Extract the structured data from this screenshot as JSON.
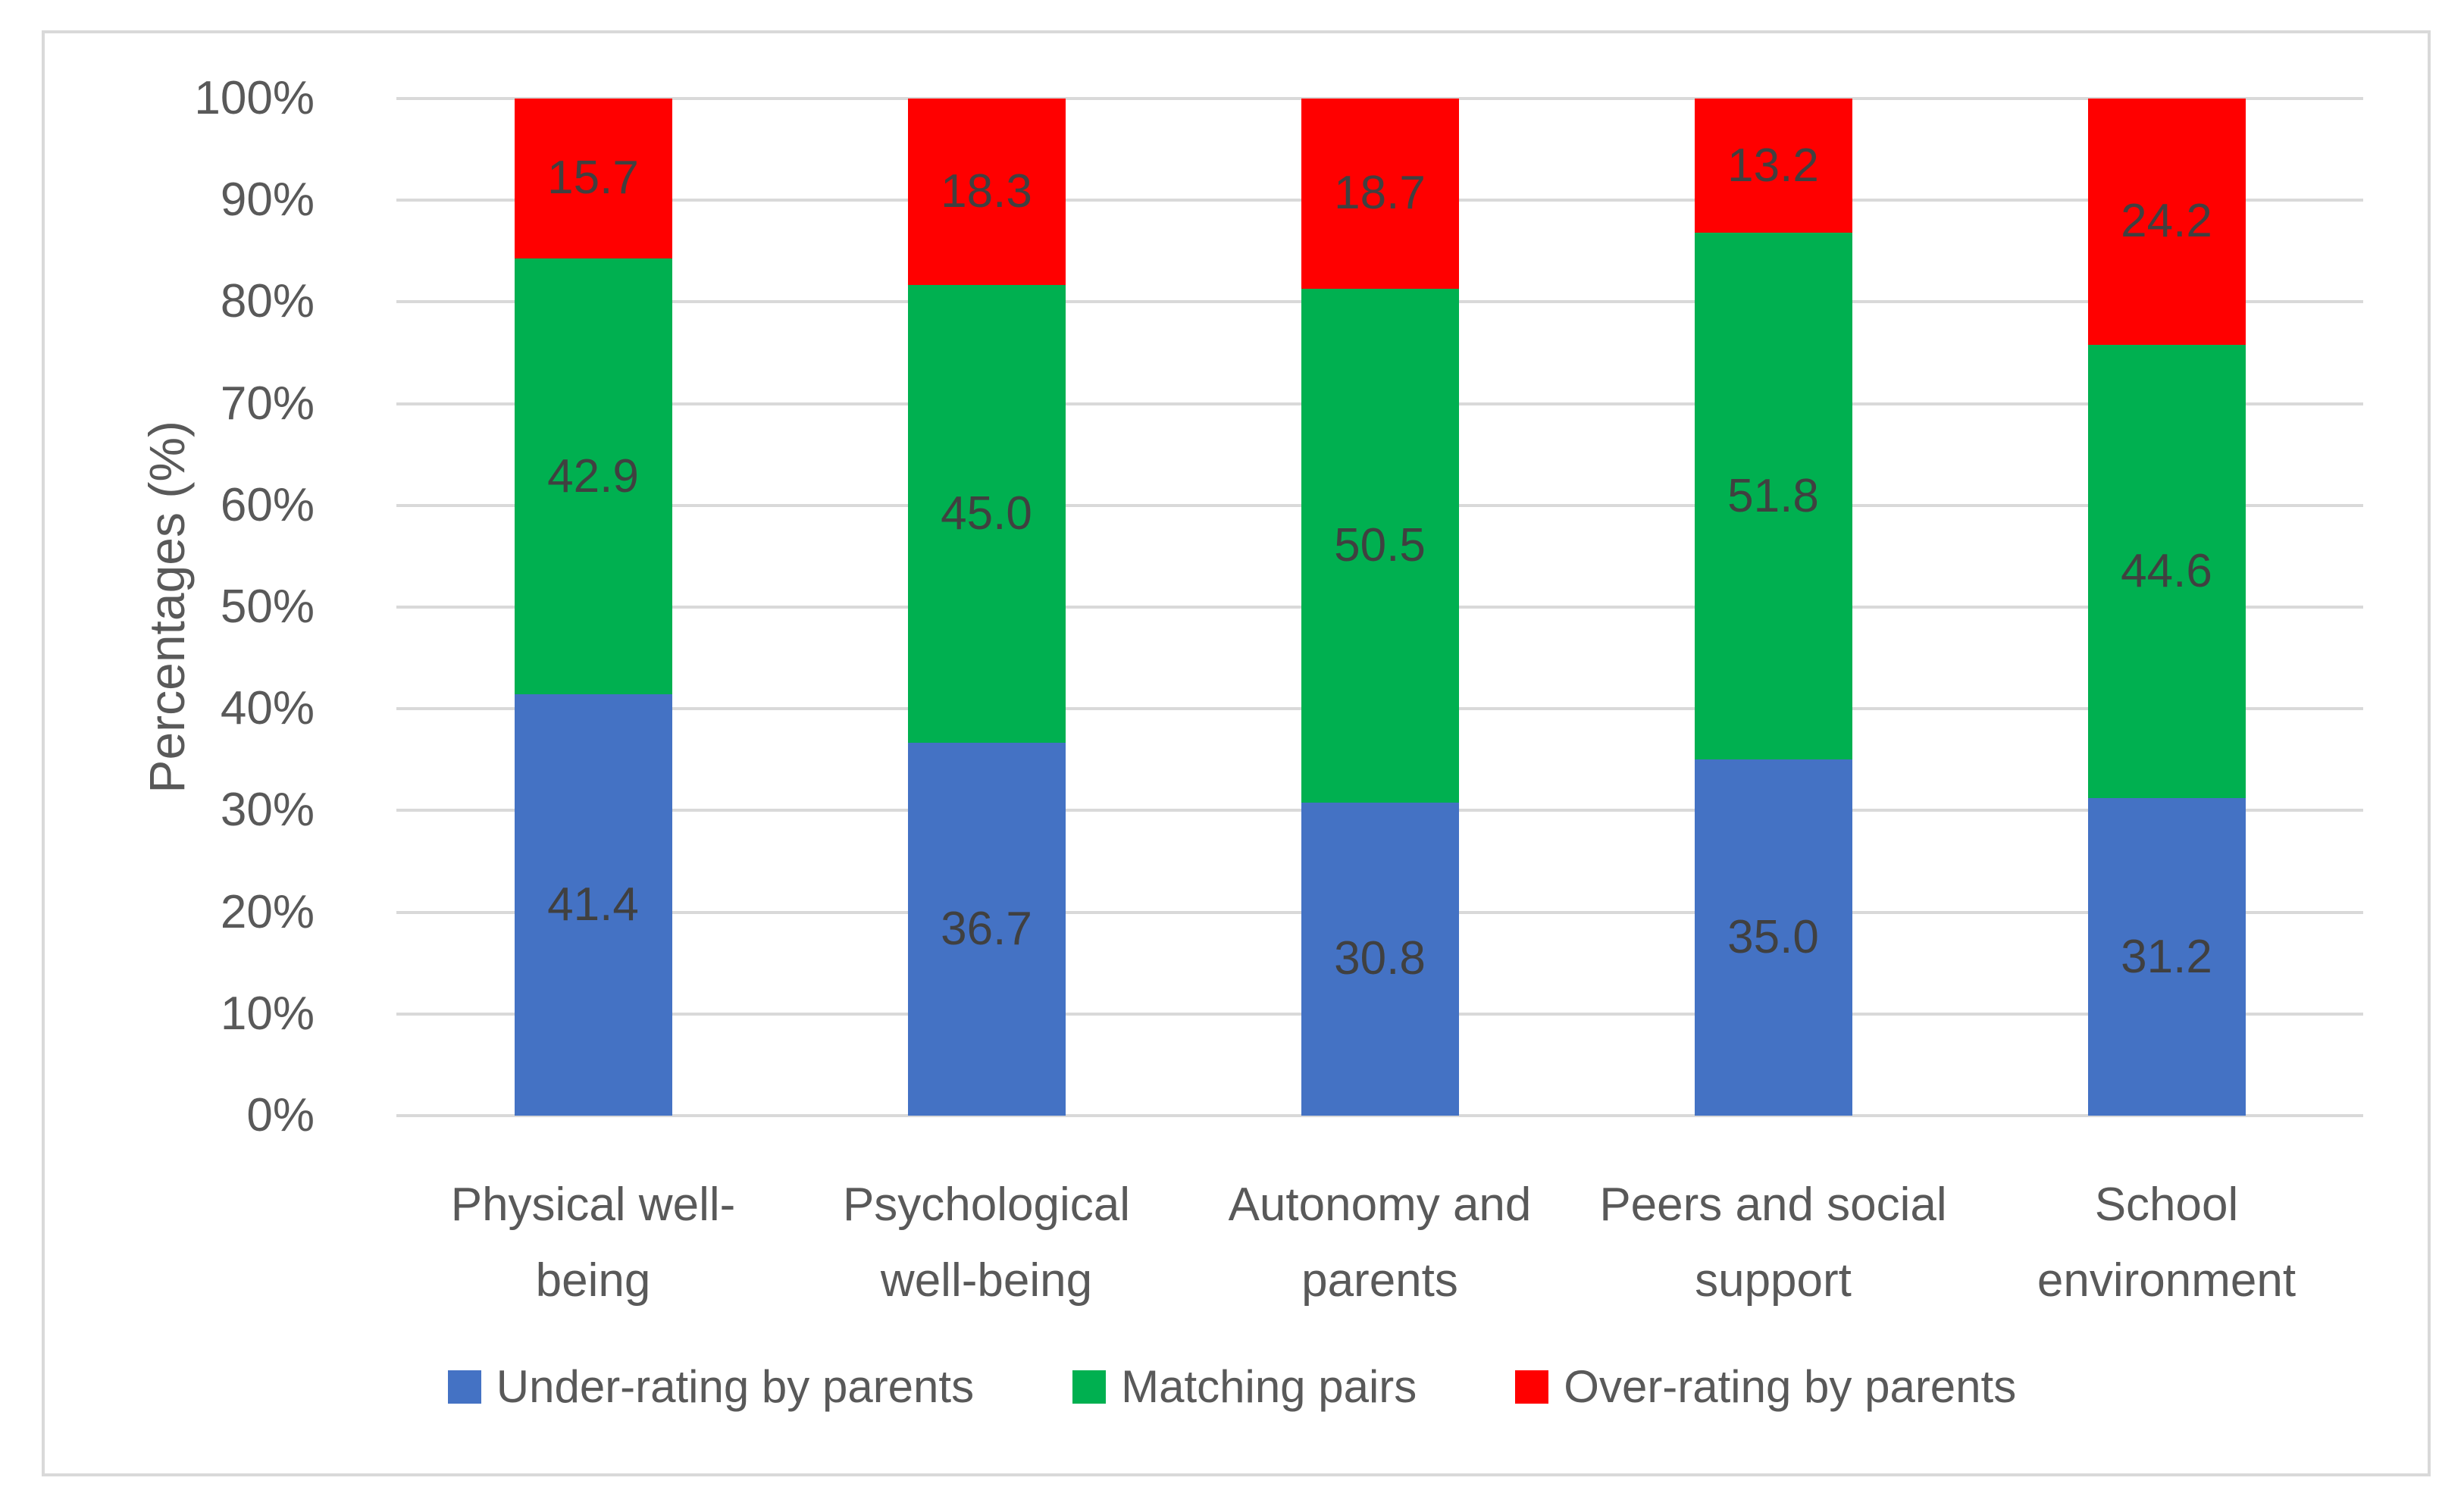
{
  "chart_data": {
    "type": "bar",
    "stacked": true,
    "orientation": "vertical",
    "title": "",
    "xlabel": "",
    "ylabel": "Percentages (%)",
    "ylim": [
      0,
      100
    ],
    "grid": true,
    "legend_position": "bottom",
    "categories": [
      "Physical well-being",
      "Psychological well-being",
      "Autonomy and parents",
      "Peers and social support",
      "School environment"
    ],
    "series": [
      {
        "name": "Under-rating by parents",
        "color": "#4472C4",
        "values": [
          41.4,
          36.7,
          30.8,
          35.0,
          31.2
        ]
      },
      {
        "name": "Matching pairs",
        "color": "#00B050",
        "values": [
          42.9,
          45.0,
          50.5,
          51.8,
          44.6
        ]
      },
      {
        "name": "Over-rating by parents",
        "color": "#FF0000",
        "values": [
          15.7,
          18.3,
          18.7,
          13.2,
          24.2
        ]
      }
    ],
    "yticks": [
      "0%",
      "10%",
      "20%",
      "30%",
      "40%",
      "50%",
      "60%",
      "70%",
      "80%",
      "90%",
      "100%"
    ],
    "colors": {
      "data_label": "#404040",
      "axis_text": "#595959",
      "gridline": "#D9D9D9",
      "chart_border": "#D9D9D9",
      "background": "#FFFFFF"
    }
  }
}
